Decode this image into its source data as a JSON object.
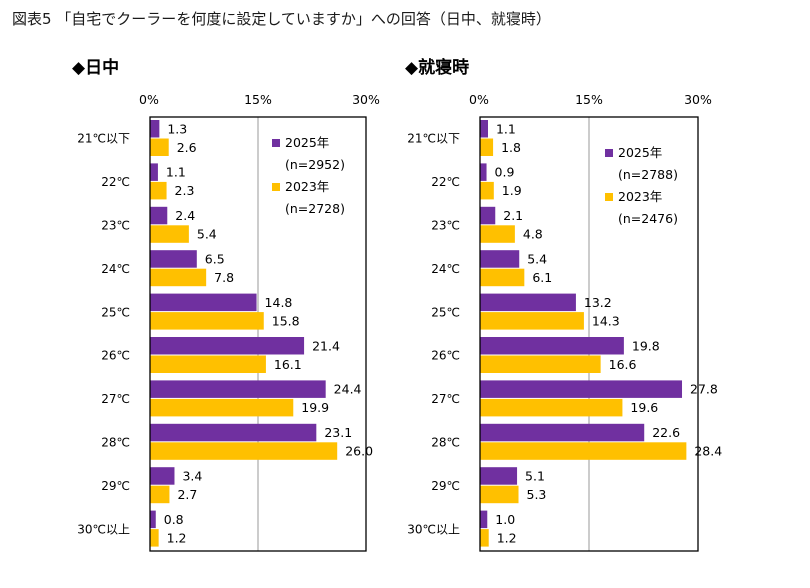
{
  "figure_title": "図表5 「自宅でクーラーを何度に設定していますか」への回答（日中、就寝時）",
  "colors": {
    "series_2025": "#7030a0",
    "series_2023": "#ffc000",
    "axis": "#000000",
    "gridline": "#9a9a9a"
  },
  "chart_data": [
    {
      "type": "bar",
      "orientation": "horizontal",
      "title": "◆日中",
      "categories": [
        "21℃以下",
        "22℃",
        "23℃",
        "24℃",
        "25℃",
        "26℃",
        "27℃",
        "28℃",
        "29℃",
        "30℃以上"
      ],
      "xlim": [
        0,
        30
      ],
      "xticks": [
        0,
        15,
        30
      ],
      "xtick_labels": [
        "0%",
        "15%",
        "30%"
      ],
      "gridlines": [
        15
      ],
      "series": [
        {
          "name": "2025年",
          "note": "(n=2952)",
          "values": [
            1.3,
            1.1,
            2.4,
            6.5,
            14.8,
            21.4,
            24.4,
            23.1,
            3.4,
            0.8
          ],
          "labels": [
            "1.3",
            "1.1",
            "2.4",
            "6.5",
            "14.8",
            "21.4",
            "24.4",
            "23.1",
            "3.4",
            "0.8"
          ]
        },
        {
          "name": "2023年",
          "note": "(n=2728)",
          "values": [
            2.6,
            2.3,
            5.4,
            7.8,
            15.8,
            16.1,
            19.9,
            26.0,
            2.7,
            1.2
          ],
          "labels": [
            "2.6",
            "2.3",
            "5.4",
            "7.8",
            "15.8",
            "16.1",
            "19.9",
            "26.0",
            "2.7",
            "1.2"
          ]
        }
      ],
      "legend_position": "top-right"
    },
    {
      "type": "bar",
      "orientation": "horizontal",
      "title": "◆就寝時",
      "categories": [
        "21℃以下",
        "22℃",
        "23℃",
        "24℃",
        "25℃",
        "26℃",
        "27℃",
        "28℃",
        "29℃",
        "30℃以上"
      ],
      "xlim": [
        0,
        30
      ],
      "xticks": [
        0,
        15,
        30
      ],
      "xtick_labels": [
        "0%",
        "15%",
        "30%"
      ],
      "gridlines": [
        15
      ],
      "series": [
        {
          "name": "2025年",
          "note": "(n=2788)",
          "values": [
            1.1,
            0.9,
            2.1,
            5.4,
            13.2,
            19.8,
            27.8,
            22.6,
            5.1,
            1.0
          ],
          "labels": [
            "1.1",
            "0.9",
            "2.1",
            "5.4",
            "13.2",
            "19.8",
            "27.8",
            "22.6",
            "5.1",
            "1.0"
          ]
        },
        {
          "name": "2023年",
          "note": "(n=2476)",
          "values": [
            1.8,
            1.9,
            4.8,
            6.1,
            14.3,
            16.6,
            19.6,
            28.4,
            5.3,
            1.2
          ],
          "labels": [
            "1.8",
            "1.9",
            "4.8",
            "6.1",
            "14.3",
            "16.6",
            "19.6",
            "28.4",
            "5.3",
            "1.2"
          ]
        }
      ],
      "legend_position": "top-right"
    }
  ]
}
